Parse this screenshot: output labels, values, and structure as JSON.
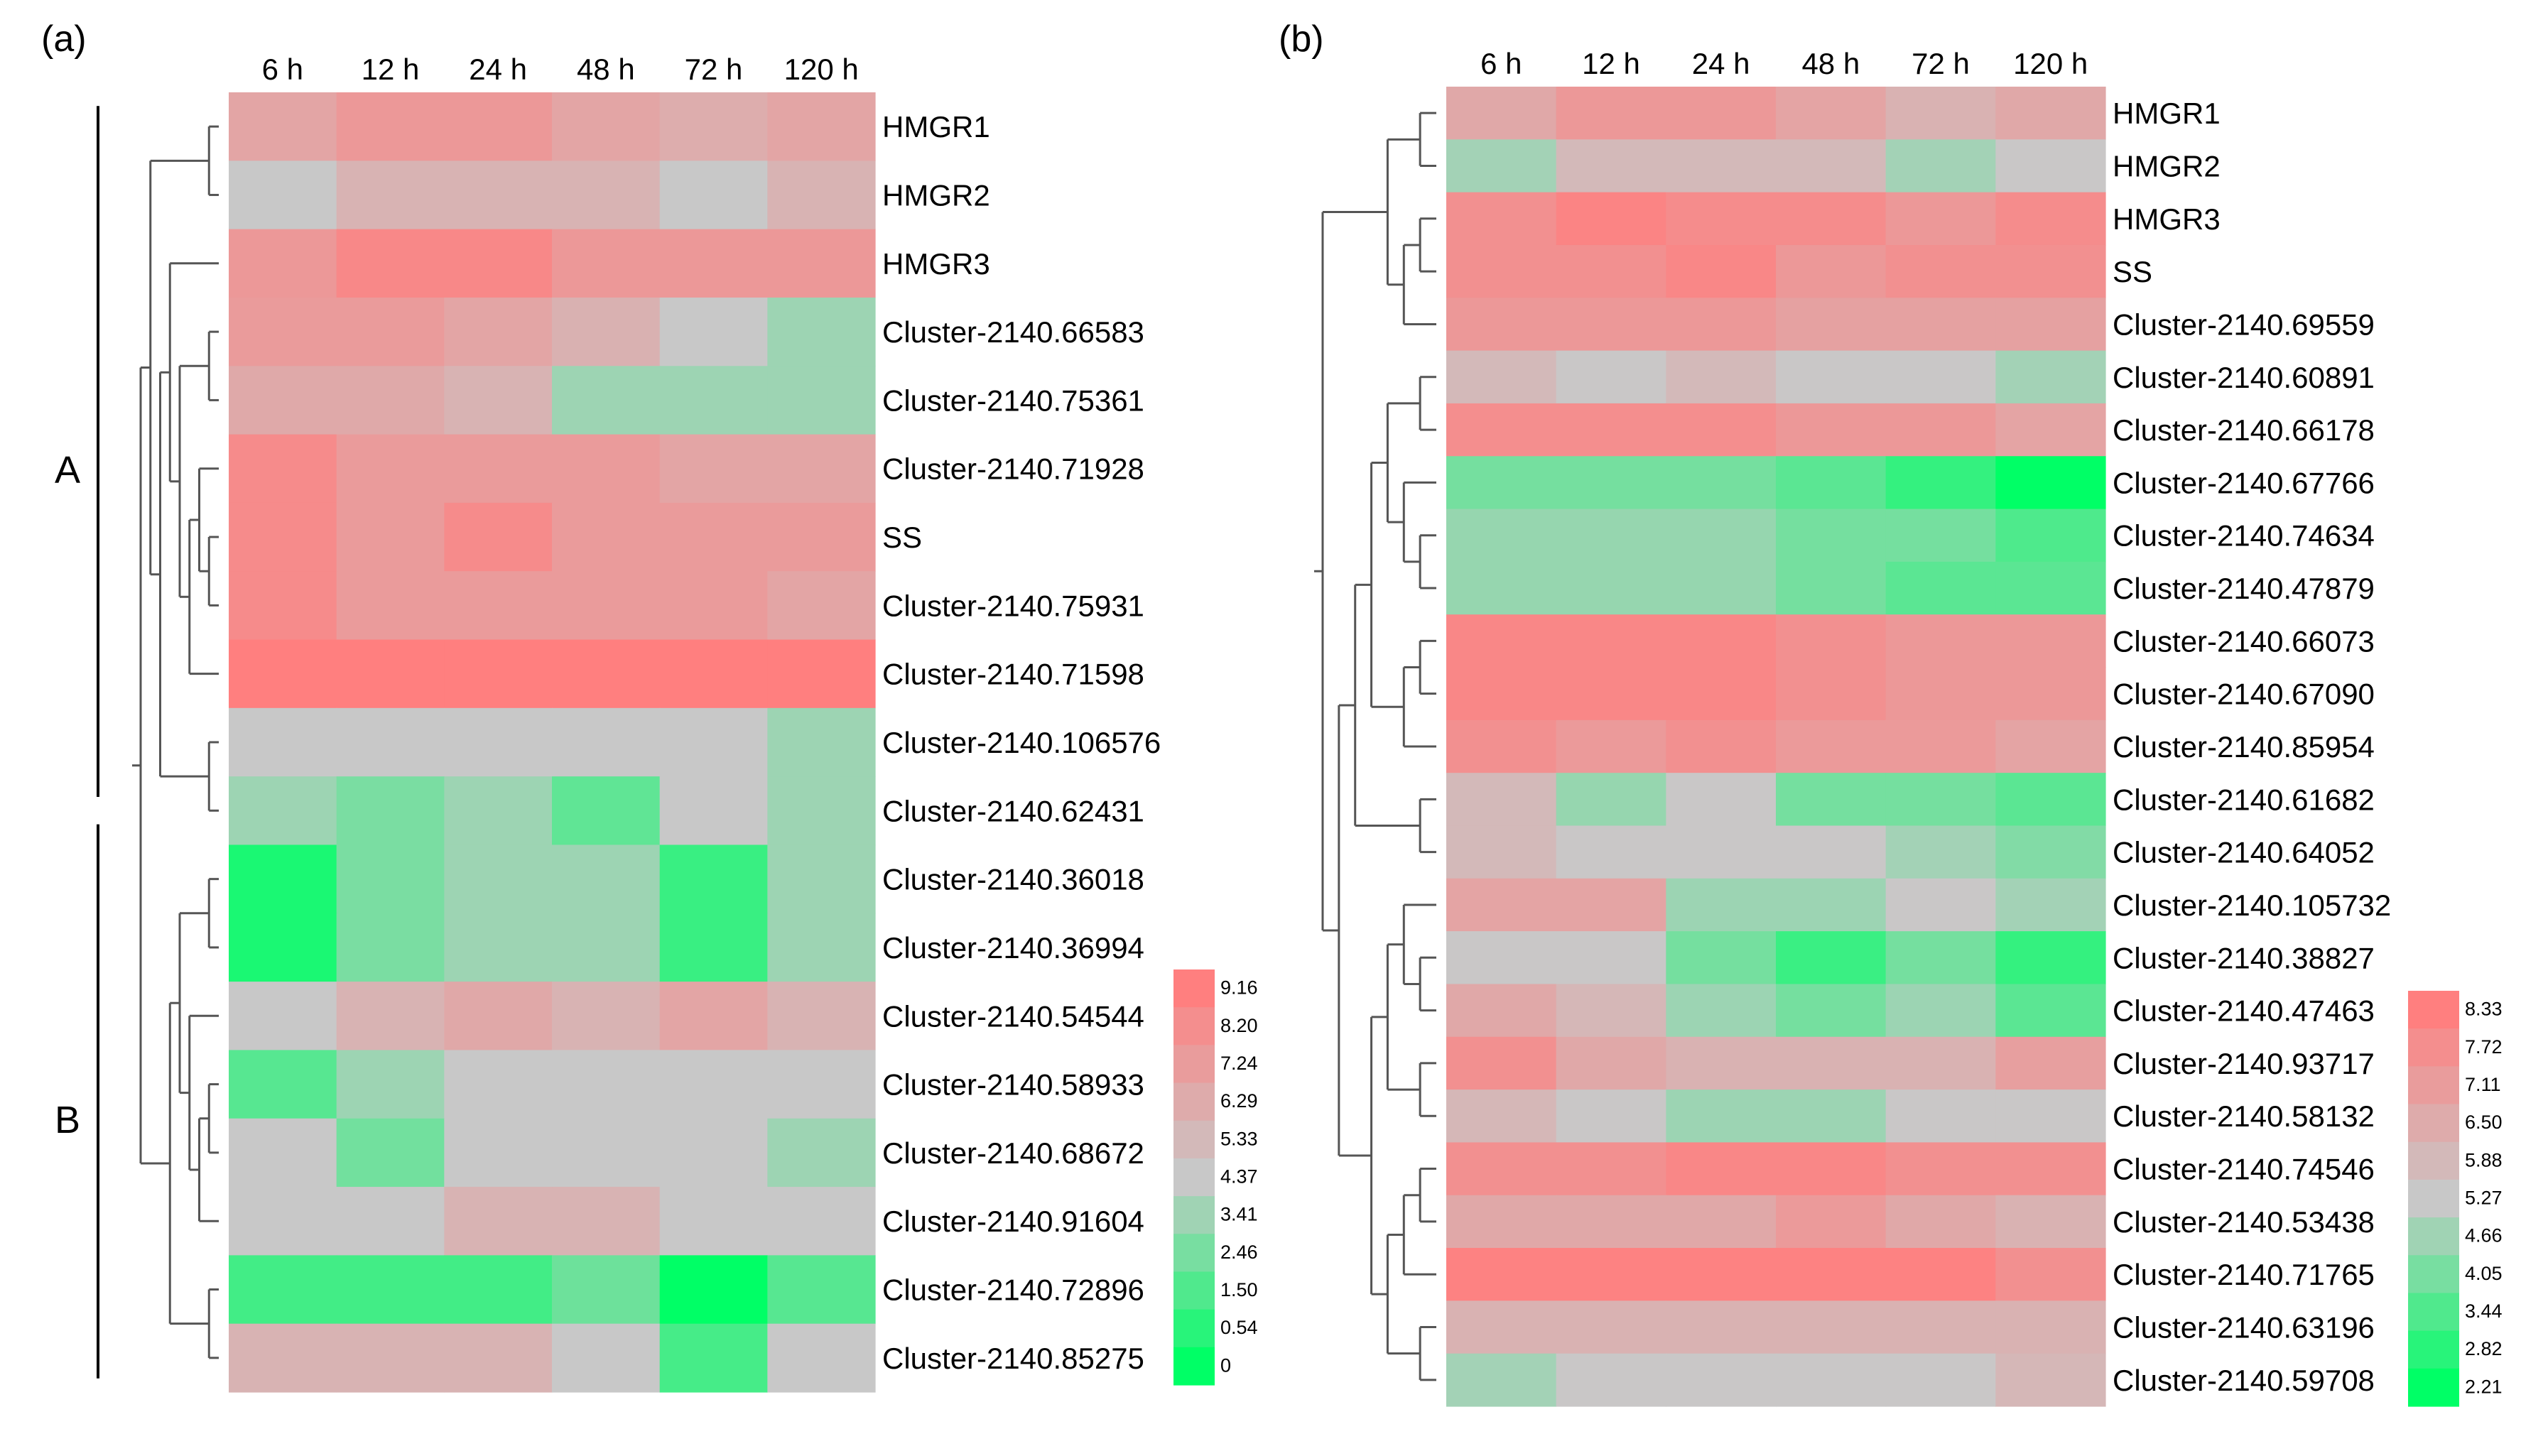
{
  "figure": {
    "panel_a_label": "(a)",
    "panel_b_label": "(b)"
  },
  "chart_data": [
    {
      "type": "heatmap",
      "panel": "(a)",
      "columns": [
        "6 h",
        "12 h",
        "24 h",
        "48 h",
        "72 h",
        "120 h"
      ],
      "rows": [
        "HMGR1",
        "HMGR2",
        "HMGR3",
        "Cluster-2140.66583",
        "Cluster-2140.75361",
        "Cluster-2140.71928",
        "SS",
        "Cluster-2140.75931",
        "Cluster-2140.71598",
        "Cluster-2140.106576",
        "Cluster-2140.62431",
        "Cluster-2140.36018",
        "Cluster-2140.36994",
        "Cluster-2140.54544",
        "Cluster-2140.58933",
        "Cluster-2140.68672",
        "Cluster-2140.91604",
        "Cluster-2140.72896",
        "Cluster-2140.85275"
      ],
      "values": [
        [
          6.8,
          7.6,
          7.6,
          6.8,
          6.3,
          6.8
        ],
        [
          4.6,
          5.9,
          5.9,
          5.9,
          4.6,
          5.9
        ],
        [
          7.6,
          8.6,
          8.6,
          7.6,
          7.6,
          7.6
        ],
        [
          7.4,
          7.4,
          6.8,
          6.0,
          4.6,
          3.6
        ],
        [
          6.5,
          6.5,
          5.9,
          3.6,
          3.6,
          3.6
        ],
        [
          8.4,
          7.4,
          7.4,
          7.4,
          6.8,
          6.8
        ],
        [
          8.4,
          7.4,
          8.4,
          7.4,
          7.4,
          7.4
        ],
        [
          8.4,
          7.4,
          7.4,
          7.4,
          7.4,
          6.8
        ],
        [
          9.2,
          9.2,
          9.2,
          9.2,
          9.2,
          9.2
        ],
        [
          4.6,
          4.6,
          4.6,
          4.6,
          4.6,
          3.6
        ],
        [
          3.6,
          2.8,
          3.6,
          2.2,
          4.6,
          3.6
        ],
        [
          0.6,
          2.8,
          3.6,
          3.6,
          1.3,
          3.6
        ],
        [
          0.6,
          2.8,
          3.6,
          3.6,
          1.3,
          3.6
        ],
        [
          4.6,
          5.9,
          6.6,
          5.9,
          6.8,
          5.9
        ],
        [
          2.0,
          3.6,
          4.6,
          4.6,
          4.6,
          4.6
        ],
        [
          4.6,
          2.6,
          4.6,
          4.6,
          4.6,
          3.6
        ],
        [
          4.6,
          4.6,
          5.9,
          5.9,
          4.6,
          4.6
        ],
        [
          1.5,
          1.5,
          1.5,
          2.5,
          0,
          2.0
        ],
        [
          5.9,
          5.9,
          5.9,
          4.6,
          1.6,
          4.6
        ]
      ],
      "colorbar_ticks": [
        "9.16",
        "8.20",
        "7.24",
        "6.29",
        "5.33",
        "4.37",
        "3.41",
        "2.46",
        "1.50",
        "0.54",
        "0"
      ],
      "vmin": 0,
      "vmax": 9.16,
      "group_labels": [
        "A",
        "B"
      ]
    },
    {
      "type": "heatmap",
      "panel": "(b)",
      "columns": [
        "6 h",
        "12 h",
        "24 h",
        "48 h",
        "72 h",
        "120 h"
      ],
      "rows": [
        "HMGR1",
        "HMGR2",
        "HMGR3",
        "SS",
        "Cluster-2140.69559",
        "Cluster-2140.60891",
        "Cluster-2140.66178",
        "Cluster-2140.67766",
        "Cluster-2140.74634",
        "Cluster-2140.47879",
        "Cluster-2140.66073",
        "Cluster-2140.67090",
        "Cluster-2140.85954",
        "Cluster-2140.61682",
        "Cluster-2140.64052",
        "Cluster-2140.105732",
        "Cluster-2140.38827",
        "Cluster-2140.47463",
        "Cluster-2140.93717",
        "Cluster-2140.58132",
        "Cluster-2140.74546",
        "Cluster-2140.53438",
        "Cluster-2140.71765",
        "Cluster-2140.63196",
        "Cluster-2140.59708"
      ],
      "values": [
        [
          6.6,
          7.3,
          7.3,
          6.8,
          6.2,
          6.6
        ],
        [
          4.7,
          5.9,
          5.9,
          5.9,
          4.7,
          5.3
        ],
        [
          7.6,
          8.1,
          7.8,
          7.8,
          7.3,
          7.8
        ],
        [
          7.6,
          7.6,
          8.0,
          7.3,
          7.6,
          7.6
        ],
        [
          7.3,
          7.3,
          7.3,
          6.9,
          6.9,
          6.9
        ],
        [
          5.9,
          5.3,
          5.9,
          5.3,
          5.3,
          4.7
        ],
        [
          7.7,
          7.7,
          7.7,
          7.3,
          7.3,
          6.8
        ],
        [
          4.0,
          4.0,
          4.0,
          3.6,
          3.0,
          2.21
        ],
        [
          4.5,
          4.5,
          4.5,
          4.0,
          4.0,
          3.4
        ],
        [
          4.5,
          4.5,
          4.5,
          4.0,
          3.6,
          3.6
        ],
        [
          8.0,
          8.0,
          8.0,
          7.6,
          7.3,
          7.3
        ],
        [
          8.0,
          8.0,
          8.0,
          7.6,
          7.3,
          7.3
        ],
        [
          7.6,
          7.2,
          7.6,
          7.2,
          7.2,
          6.8
        ],
        [
          5.9,
          4.5,
          5.3,
          4.0,
          4.0,
          3.6
        ],
        [
          5.9,
          5.3,
          5.3,
          5.3,
          4.7,
          4.2
        ],
        [
          6.8,
          6.8,
          4.6,
          4.6,
          5.3,
          4.7
        ],
        [
          5.3,
          5.3,
          4.0,
          3.1,
          4.0,
          3.0
        ],
        [
          6.6,
          6.0,
          4.6,
          4.0,
          4.6,
          3.6
        ],
        [
          7.6,
          6.6,
          6.2,
          6.2,
          6.2,
          7.0
        ],
        [
          6.0,
          5.3,
          4.6,
          4.6,
          5.3,
          5.3
        ],
        [
          7.6,
          7.6,
          8.0,
          8.0,
          7.6,
          7.6
        ],
        [
          6.6,
          6.6,
          6.6,
          7.2,
          6.6,
          6.2
        ],
        [
          8.2,
          8.2,
          8.2,
          8.2,
          8.2,
          7.6
        ],
        [
          6.2,
          6.2,
          6.2,
          6.2,
          6.2,
          6.2
        ],
        [
          4.7,
          5.3,
          5.3,
          5.3,
          5.3,
          6.0
        ]
      ],
      "colorbar_ticks": [
        "8.33",
        "7.72",
        "7.11",
        "6.50",
        "5.88",
        "5.27",
        "4.66",
        "4.05",
        "3.44",
        "2.82",
        "2.21"
      ],
      "vmin": 2.21,
      "vmax": 8.33
    }
  ],
  "colors": {
    "high": "#ff7f7f",
    "mid": "#c8c8c8",
    "low": "#00ff66",
    "tree_line": "#555555"
  }
}
